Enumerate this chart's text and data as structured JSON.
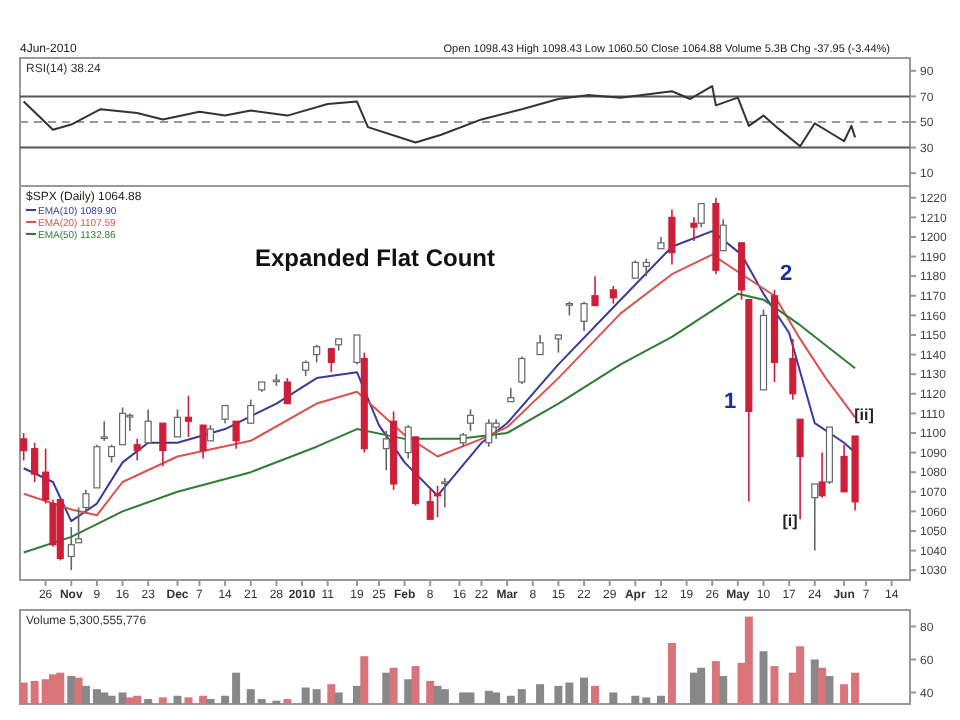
{
  "chart_data": [
    {
      "type": "line",
      "title": "RSI(14) 38.24",
      "annotations": [
        "4Jun-2010",
        "Open 1098.43 High 1098.43 Low 1060.50 Close 1064.88 Volume 5.3B Chg -37.95 (-3.44%)"
      ],
      "xlim": [
        "2009-10-19",
        "2010-06-19"
      ],
      "ylim": [
        0,
        100
      ],
      "yticks": [
        10,
        30,
        50,
        70,
        90
      ],
      "tick_labels": "y",
      "ref_lines": [
        {
          "axis": "y",
          "value": 70,
          "color": "#555555",
          "line_style": "solid"
        },
        {
          "axis": "y",
          "value": 50,
          "color": "#999999",
          "line_style": "dashed"
        },
        {
          "axis": "y",
          "value": 30,
          "color": "#555555",
          "line_style": "solid"
        }
      ],
      "series": [
        {
          "color": "#333333",
          "x": [
            "2009-10-20",
            "2009-10-28",
            "2009-11-02",
            "2009-11-10",
            "2009-11-20",
            "2009-11-27",
            "2009-12-07",
            "2009-12-14",
            "2009-12-21",
            "2009-12-31",
            "2010-01-11",
            "2010-01-19",
            "2010-01-22",
            "2010-02-04",
            "2010-02-11",
            "2010-02-22",
            "2010-03-05",
            "2010-03-15",
            "2010-03-23",
            "2010-04-01",
            "2010-04-15",
            "2010-04-20",
            "2010-04-26",
            "2010-04-27",
            "2010-05-03",
            "2010-05-06",
            "2010-05-10",
            "2010-05-14",
            "2010-05-20",
            "2010-05-24",
            "2010-05-28",
            "2010-06-01",
            "2010-06-03",
            "2010-06-04"
          ],
          "values": [
            66,
            44,
            48,
            60,
            57,
            52,
            58,
            55,
            59,
            55,
            64,
            66,
            46,
            34,
            40,
            52,
            60,
            68,
            71,
            69,
            74,
            68,
            78,
            63,
            69,
            47,
            55,
            45,
            31,
            49,
            42,
            35,
            47,
            38
          ]
        }
      ]
    },
    {
      "type": "candlestick",
      "title": "$SPX (Daily) 1064.88",
      "legend": "top left",
      "annotations": [
        "Expanded Flat Count",
        "1",
        "2",
        "[i]",
        "[ii]"
      ],
      "xlim": [
        "2009-10-19",
        "2010-06-19"
      ],
      "ylim": [
        1025,
        1226
      ],
      "yticks": [
        1030,
        1040,
        1050,
        1060,
        1070,
        1080,
        1090,
        1100,
        1110,
        1120,
        1130,
        1140,
        1150,
        1160,
        1170,
        1180,
        1190,
        1200,
        1210,
        1220
      ],
      "xticks": [
        {
          "value": "2009-10-26",
          "label": "26"
        },
        {
          "value": "2009-11-02",
          "label": "Nov"
        },
        {
          "value": "2009-11-09",
          "label": "9"
        },
        {
          "value": "2009-11-16",
          "label": "16"
        },
        {
          "value": "2009-11-23",
          "label": "23"
        },
        {
          "value": "2009-12-01",
          "label": "Dec"
        },
        {
          "value": "2009-12-07",
          "label": "7"
        },
        {
          "value": "2009-12-14",
          "label": "14"
        },
        {
          "value": "2009-12-21",
          "label": "21"
        },
        {
          "value": "2009-12-28",
          "label": "28"
        },
        {
          "value": "2010-01-04",
          "label": "2010"
        },
        {
          "value": "2010-01-11",
          "label": "11"
        },
        {
          "value": "2010-01-19",
          "label": "19"
        },
        {
          "value": "2010-01-25",
          "label": "25"
        },
        {
          "value": "2010-02-01",
          "label": "Feb"
        },
        {
          "value": "2010-02-08",
          "label": "8"
        },
        {
          "value": "2010-02-16",
          "label": "16"
        },
        {
          "value": "2010-02-22",
          "label": "22"
        },
        {
          "value": "2010-03-01",
          "label": "Mar"
        },
        {
          "value": "2010-03-08",
          "label": "8"
        },
        {
          "value": "2010-03-15",
          "label": "15"
        },
        {
          "value": "2010-03-22",
          "label": "22"
        },
        {
          "value": "2010-03-29",
          "label": "29"
        },
        {
          "value": "2010-04-05",
          "label": "Apr"
        },
        {
          "value": "2010-04-12",
          "label": "12"
        },
        {
          "value": "2010-04-19",
          "label": "19"
        },
        {
          "value": "2010-04-26",
          "label": "26"
        },
        {
          "value": "2010-05-03",
          "label": "May"
        },
        {
          "value": "2010-05-10",
          "label": "10"
        },
        {
          "value": "2010-05-17",
          "label": "17"
        },
        {
          "value": "2010-05-24",
          "label": "24"
        },
        {
          "value": "2010-06-01",
          "label": "Jun"
        },
        {
          "value": "2010-06-07",
          "label": "7"
        },
        {
          "value": "2010-06-14",
          "label": "14"
        }
      ],
      "x": [
        "2009-10-20",
        "2009-10-23",
        "2009-10-26",
        "2009-10-28",
        "2009-10-30",
        "2009-11-02",
        "2009-11-04",
        "2009-11-06",
        "2009-11-09",
        "2009-11-11",
        "2009-11-13",
        "2009-11-16",
        "2009-11-18",
        "2009-11-20",
        "2009-11-23",
        "2009-11-27",
        "2009-12-01",
        "2009-12-04",
        "2009-12-08",
        "2009-12-10",
        "2009-12-14",
        "2009-12-17",
        "2009-12-21",
        "2009-12-24",
        "2009-12-28",
        "2009-12-31",
        "2010-01-05",
        "2010-01-08",
        "2010-01-12",
        "2010-01-14",
        "2010-01-19",
        "2010-01-21",
        "2010-01-27",
        "2010-01-29",
        "2010-02-02",
        "2010-02-04",
        "2010-02-08",
        "2010-02-10",
        "2010-02-12",
        "2010-02-17",
        "2010-02-19",
        "2010-02-24",
        "2010-02-26",
        "2010-03-02",
        "2010-03-05",
        "2010-03-10",
        "2010-03-15",
        "2010-03-18",
        "2010-03-22",
        "2010-03-25",
        "2010-03-30",
        "2010-04-05",
        "2010-04-08",
        "2010-04-12",
        "2010-04-15",
        "2010-04-21",
        "2010-04-23",
        "2010-04-27",
        "2010-04-29",
        "2010-05-04",
        "2010-05-06",
        "2010-05-10",
        "2010-05-13",
        "2010-05-18",
        "2010-05-20",
        "2010-05-24",
        "2010-05-26",
        "2010-05-28",
        "2010-06-01",
        "2010-06-04"
      ],
      "ohlc": [
        [
          1097,
          1100,
          1086,
          1091
        ],
        [
          1092,
          1095,
          1075,
          1079
        ],
        [
          1080,
          1092,
          1064,
          1066
        ],
        [
          1064,
          1066,
          1042,
          1043
        ],
        [
          1066,
          1066,
          1035,
          1036
        ],
        [
          1037,
          1052,
          1030,
          1043
        ],
        [
          1044,
          1062,
          1044,
          1046
        ],
        [
          1062,
          1071,
          1059,
          1069
        ],
        [
          1072,
          1094,
          1072,
          1093
        ],
        [
          1098,
          1106,
          1096,
          1098
        ],
        [
          1088,
          1094,
          1085,
          1093
        ],
        [
          1094,
          1113,
          1094,
          1110
        ],
        [
          1109,
          1110,
          1101,
          1109
        ],
        [
          1094,
          1097,
          1086,
          1091
        ],
        [
          1095,
          1112,
          1095,
          1106
        ],
        [
          1105,
          1105,
          1083,
          1091
        ],
        [
          1098,
          1112,
          1098,
          1108
        ],
        [
          1108,
          1119,
          1098,
          1106
        ],
        [
          1104,
          1104,
          1087,
          1091
        ],
        [
          1096,
          1104,
          1096,
          1102
        ],
        [
          1107,
          1114,
          1105,
          1114
        ],
        [
          1106,
          1106,
          1092,
          1096
        ],
        [
          1105,
          1117,
          1105,
          1114
        ],
        [
          1122,
          1126,
          1121,
          1126
        ],
        [
          1127,
          1130,
          1124,
          1127
        ],
        [
          1126,
          1128,
          1115,
          1115
        ],
        [
          1132,
          1137,
          1129,
          1136
        ],
        [
          1140,
          1145,
          1136,
          1144
        ],
        [
          1143,
          1143,
          1131,
          1136
        ],
        [
          1145,
          1148,
          1142,
          1148
        ],
        [
          1136,
          1150,
          1135,
          1150
        ],
        [
          1138,
          1141,
          1090,
          1092
        ],
        [
          1092,
          1101,
          1081,
          1097
        ],
        [
          1106,
          1111,
          1071,
          1074
        ],
        [
          1090,
          1104,
          1087,
          1103
        ],
        [
          1098,
          1098,
          1063,
          1064
        ],
        [
          1065,
          1072,
          1056,
          1056
        ],
        [
          1069,
          1073,
          1057,
          1068
        ],
        [
          1075,
          1077,
          1062,
          1075
        ],
        [
          1095,
          1100,
          1093,
          1099
        ],
        [
          1105,
          1112,
          1101,
          1109
        ],
        [
          1095,
          1107,
          1093,
          1105
        ],
        [
          1103,
          1107,
          1097,
          1105
        ],
        [
          1116,
          1123,
          1116,
          1118
        ],
        [
          1126,
          1139,
          1125,
          1138
        ],
        [
          1140,
          1150,
          1140,
          1146
        ],
        [
          1148,
          1150,
          1141,
          1150
        ],
        [
          1166,
          1167,
          1160,
          1166
        ],
        [
          1157,
          1167,
          1152,
          1166
        ],
        [
          1170,
          1180,
          1165,
          1165
        ],
        [
          1173,
          1175,
          1166,
          1169
        ],
        [
          1179,
          1188,
          1179,
          1187
        ],
        [
          1185,
          1189,
          1180,
          1187
        ],
        [
          1194,
          1200,
          1194,
          1197
        ],
        [
          1210,
          1214,
          1186,
          1192
        ],
        [
          1207,
          1210,
          1198,
          1205
        ],
        [
          1207,
          1217,
          1205,
          1217
        ],
        [
          1217,
          1220,
          1181,
          1183
        ],
        [
          1193,
          1209,
          1193,
          1206
        ],
        [
          1197,
          1197,
          1168,
          1173
        ],
        [
          1168,
          1168,
          1065,
          1111
        ],
        [
          1122,
          1163,
          1122,
          1160
        ],
        [
          1170,
          1173,
          1126,
          1136
        ],
        [
          1138,
          1148,
          1117,
          1120
        ],
        [
          1107,
          1107,
          1056,
          1088
        ],
        [
          1067,
          1074,
          1040,
          1074
        ],
        [
          1075,
          1090,
          1067,
          1068
        ],
        [
          1075,
          1103,
          1074,
          1103
        ],
        [
          1088,
          1094,
          1070,
          1070
        ],
        [
          1098.43,
          1098.43,
          1060.5,
          1064.88
        ]
      ],
      "series": [
        {
          "name": "EMA(10) 1089.90",
          "type": "line",
          "color": "#3a3a9a",
          "x": [
            "2009-10-20",
            "2009-10-28",
            "2009-11-02",
            "2009-11-09",
            "2009-11-16",
            "2009-11-23",
            "2009-12-01",
            "2009-12-14",
            "2009-12-28",
            "2010-01-08",
            "2010-01-19",
            "2010-01-25",
            "2010-02-01",
            "2010-02-10",
            "2010-02-22",
            "2010-03-01",
            "2010-03-15",
            "2010-04-01",
            "2010-04-15",
            "2010-04-26",
            "2010-05-04",
            "2010-05-10",
            "2010-05-17",
            "2010-05-24",
            "2010-06-01",
            "2010-06-04"
          ],
          "values": [
            1082,
            1075,
            1055,
            1064,
            1085,
            1095,
            1095,
            1102,
            1115,
            1128,
            1131,
            1104,
            1085,
            1068,
            1095,
            1105,
            1135,
            1168,
            1195,
            1203,
            1191,
            1171,
            1151,
            1105,
            1095,
            1090
          ]
        },
        {
          "name": "EMA(20) 1107.59",
          "type": "line",
          "color": "#d9534f",
          "x": [
            "2009-10-20",
            "2009-11-02",
            "2009-11-09",
            "2009-11-16",
            "2009-12-01",
            "2009-12-21",
            "2010-01-08",
            "2010-01-19",
            "2010-02-01",
            "2010-02-10",
            "2010-02-22",
            "2010-03-01",
            "2010-03-15",
            "2010-04-01",
            "2010-04-15",
            "2010-04-26",
            "2010-05-04",
            "2010-05-13",
            "2010-05-20",
            "2010-05-27",
            "2010-06-04"
          ],
          "values": [
            1069,
            1061,
            1058,
            1075,
            1088,
            1096,
            1115,
            1121,
            1099,
            1088,
            1097,
            1103,
            1128,
            1161,
            1181,
            1191,
            1181,
            1170,
            1148,
            1128,
            1108
          ]
        },
        {
          "name": "EMA(50) 1132.86",
          "type": "line",
          "color": "#2e7d32",
          "x": [
            "2009-10-20",
            "2009-11-02",
            "2009-11-16",
            "2009-12-01",
            "2009-12-21",
            "2010-01-08",
            "2010-01-19",
            "2010-02-01",
            "2010-02-16",
            "2010-03-01",
            "2010-03-15",
            "2010-04-01",
            "2010-04-15",
            "2010-05-03",
            "2010-05-10",
            "2010-05-20",
            "2010-06-04"
          ],
          "values": [
            1039,
            1047,
            1060,
            1070,
            1080,
            1093,
            1102,
            1097,
            1097,
            1100,
            1115,
            1135,
            1149,
            1171,
            1168,
            1155,
            1133
          ]
        }
      ]
    },
    {
      "type": "bar",
      "title": "Volume 5,300,555,776",
      "tick_labels": "y",
      "xlim": [
        "2009-10-19",
        "2010-06-19"
      ],
      "ylim": [
        33,
        90
      ],
      "yticks": [
        40,
        60,
        80
      ],
      "x": [
        "2009-10-20",
        "2009-10-23",
        "2009-10-26",
        "2009-10-28",
        "2009-10-30",
        "2009-11-02",
        "2009-11-04",
        "2009-11-06",
        "2009-11-09",
        "2009-11-11",
        "2009-11-13",
        "2009-11-16",
        "2009-11-18",
        "2009-11-20",
        "2009-11-23",
        "2009-11-27",
        "2009-12-01",
        "2009-12-04",
        "2009-12-08",
        "2009-12-10",
        "2009-12-14",
        "2009-12-17",
        "2009-12-21",
        "2009-12-24",
        "2009-12-28",
        "2009-12-31",
        "2010-01-05",
        "2010-01-08",
        "2010-01-12",
        "2010-01-14",
        "2010-01-19",
        "2010-01-21",
        "2010-01-27",
        "2010-01-29",
        "2010-02-02",
        "2010-02-04",
        "2010-02-08",
        "2010-02-10",
        "2010-02-12",
        "2010-02-17",
        "2010-02-19",
        "2010-02-24",
        "2010-02-26",
        "2010-03-02",
        "2010-03-05",
        "2010-03-10",
        "2010-03-15",
        "2010-03-18",
        "2010-03-22",
        "2010-03-25",
        "2010-03-30",
        "2010-04-05",
        "2010-04-08",
        "2010-04-12",
        "2010-04-15",
        "2010-04-21",
        "2010-04-23",
        "2010-04-27",
        "2010-04-29",
        "2010-05-04",
        "2010-05-06",
        "2010-05-10",
        "2010-05-13",
        "2010-05-18",
        "2010-05-20",
        "2010-05-24",
        "2010-05-26",
        "2010-05-28",
        "2010-06-01",
        "2010-06-04"
      ],
      "values": [
        46,
        47,
        48,
        51,
        52,
        50,
        49,
        44,
        42,
        40,
        38,
        40,
        37,
        38,
        36,
        37,
        38,
        37,
        38,
        36,
        38,
        52,
        42,
        36,
        35,
        36,
        43,
        42,
        45,
        40,
        44,
        62,
        52,
        55,
        48,
        56,
        47,
        44,
        42,
        40,
        40,
        41,
        40,
        38,
        42,
        45,
        44,
        46,
        49,
        44,
        40,
        38,
        37,
        38,
        70,
        52,
        55,
        59,
        50,
        58,
        86,
        65,
        56,
        52,
        68,
        60,
        55,
        50,
        45,
        52
      ],
      "colors": [
        "#d9757a",
        "#d9757a",
        "#d9757a",
        "#d9757a",
        "#d9757a",
        "#888888",
        "#d9757a",
        "#888888",
        "#888888",
        "#888888",
        "#888888",
        "#888888",
        "#d9757a",
        "#d9757a",
        "#888888",
        "#d9757a",
        "#888888",
        "#d9757a",
        "#d9757a",
        "#888888",
        "#888888",
        "#888888",
        "#888888",
        "#888888",
        "#888888",
        "#d9757a",
        "#888888",
        "#888888",
        "#d9757a",
        "#888888",
        "#888888",
        "#d9757a",
        "#888888",
        "#d9757a",
        "#888888",
        "#d9757a",
        "#d9757a",
        "#888888",
        "#888888",
        "#888888",
        "#888888",
        "#888888",
        "#888888",
        "#888888",
        "#888888",
        "#888888",
        "#888888",
        "#888888",
        "#888888",
        "#d9757a",
        "#888888",
        "#888888",
        "#888888",
        "#888888",
        "#d9757a",
        "#888888",
        "#888888",
        "#d9757a",
        "#888888",
        "#d9757a",
        "#d9757a",
        "#888888",
        "#d9757a",
        "#d9757a",
        "#d9757a",
        "#888888",
        "#d9757a",
        "#888888",
        "#d9757a",
        "#d9757a"
      ]
    }
  ]
}
